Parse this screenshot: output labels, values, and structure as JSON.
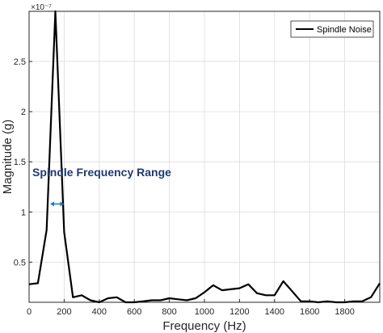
{
  "chart_data": {
    "type": "line",
    "xlabel": "Frequency (Hz)",
    "ylabel": "Magnitude (g)",
    "y_exponent_label": "×10⁻⁷",
    "xlim": [
      0,
      2000
    ],
    "ylim": [
      0.1,
      3.0
    ],
    "x_ticks": [
      0,
      200,
      400,
      600,
      800,
      1000,
      1200,
      1400,
      1600,
      1800
    ],
    "x_tick_labels": [
      "0",
      "200",
      "400",
      "600",
      "800",
      "1000",
      "1200",
      "1400",
      "1600",
      "1800"
    ],
    "y_ticks": [
      0.5,
      1.0,
      1.5,
      2.0,
      2.5
    ],
    "y_tick_labels": [
      "0.5",
      "1",
      "1.5",
      "2",
      "2.5"
    ],
    "grid": true,
    "legend_position": "top-right",
    "series": [
      {
        "name": "Spindle Noise",
        "color": "#000000",
        "x": [
          0,
          50,
          100,
          150,
          200,
          250,
          300,
          350,
          400,
          450,
          500,
          550,
          600,
          650,
          700,
          750,
          800,
          850,
          900,
          950,
          1000,
          1050,
          1100,
          1150,
          1200,
          1250,
          1300,
          1350,
          1400,
          1450,
          1500,
          1550,
          1600,
          1650,
          1700,
          1750,
          1800,
          1850,
          1900,
          1950,
          2000
        ],
        "y": [
          0.28,
          0.29,
          0.82,
          3.0,
          0.8,
          0.15,
          0.17,
          0.12,
          0.1,
          0.14,
          0.15,
          0.1,
          0.1,
          0.11,
          0.12,
          0.12,
          0.14,
          0.13,
          0.12,
          0.14,
          0.2,
          0.27,
          0.22,
          0.23,
          0.24,
          0.28,
          0.19,
          0.17,
          0.17,
          0.31,
          0.21,
          0.11,
          0.11,
          0.1,
          0.11,
          0.1,
          0.1,
          0.11,
          0.11,
          0.15,
          0.29
        ]
      }
    ],
    "annotation": {
      "text": "Spindle Frequency Range",
      "range_x": [
        120,
        200
      ],
      "at_y": 1.08,
      "color": "#1f78c8"
    }
  }
}
